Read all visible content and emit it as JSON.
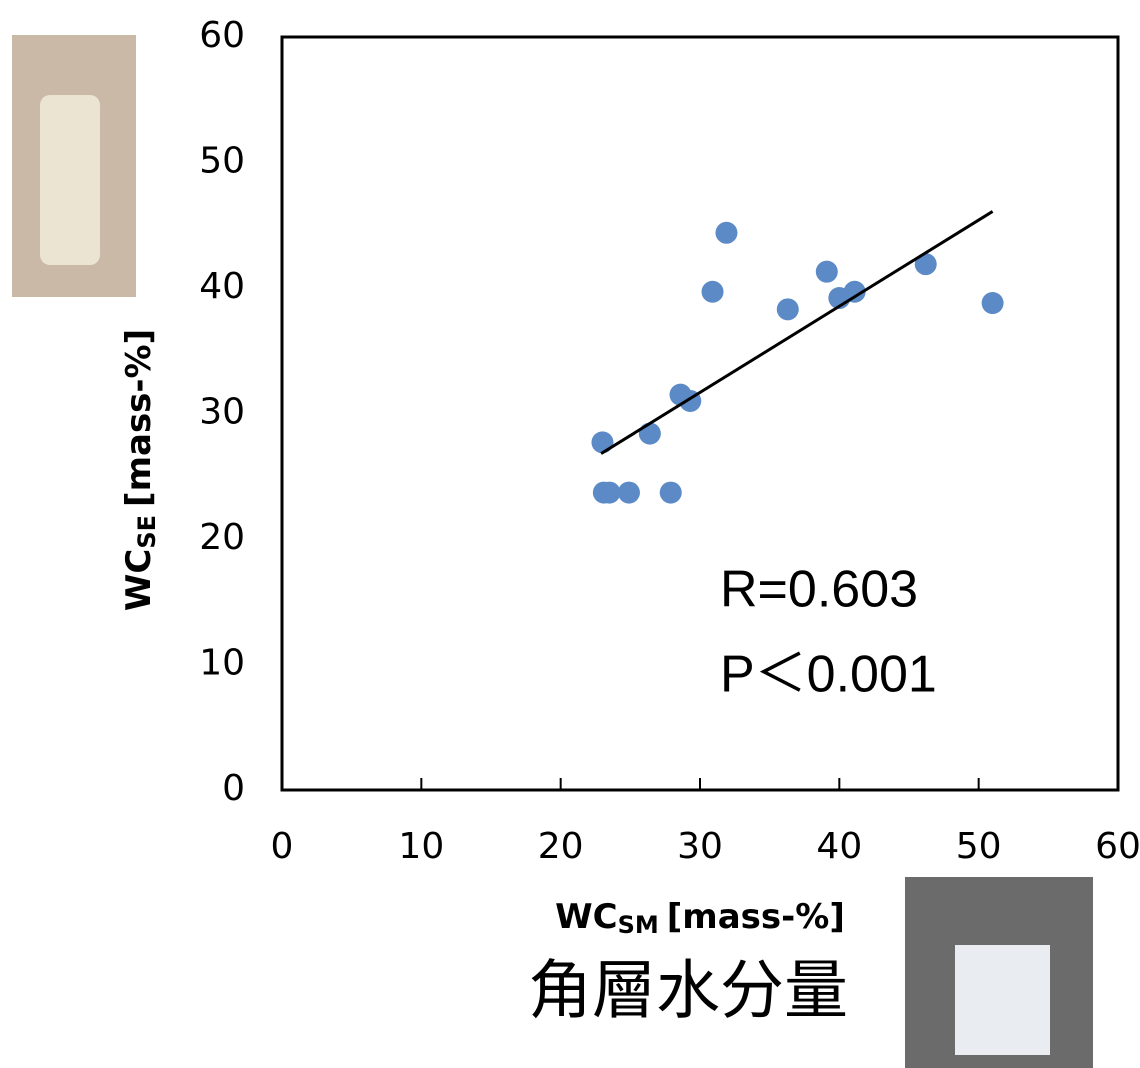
{
  "chart_data": {
    "type": "scatter",
    "x_label": {
      "main": "WC",
      "sub": "SM",
      "unit": "[mass-%]"
    },
    "y_label": {
      "main": "WC",
      "sub": "SE",
      "unit": "[mass-%]"
    },
    "caption": "角層水分量",
    "annotations": [
      "R=0.603",
      "P＜0.001"
    ],
    "x": [
      23.0,
      23.1,
      23.5,
      24.9,
      26.4,
      27.9,
      28.6,
      29.3,
      30.9,
      31.9,
      36.3,
      39.1,
      40.0,
      41.1,
      46.2,
      51.0
    ],
    "y": [
      27.7,
      23.7,
      23.7,
      23.7,
      28.4,
      23.7,
      31.5,
      31.0,
      39.7,
      44.4,
      38.3,
      41.3,
      39.2,
      39.7,
      41.9,
      38.8
    ],
    "color": "#5b8ac6",
    "trendline": {
      "x": [
        22.9,
        51.0
      ],
      "y": [
        26.8,
        46.1
      ],
      "color": "#000000"
    },
    "xlim": [
      0,
      60
    ],
    "ylim": [
      0,
      60
    ],
    "xticks": [
      0,
      10,
      20,
      30,
      40,
      50,
      60
    ],
    "yticks": [
      0,
      10,
      20,
      30,
      40,
      50,
      60
    ],
    "grid": false
  }
}
